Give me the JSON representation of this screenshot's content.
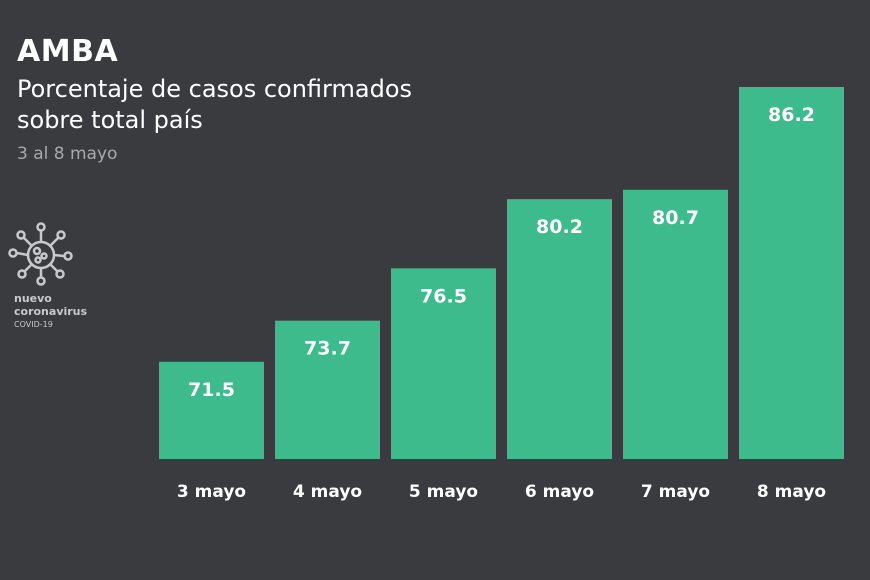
{
  "chart_data": {
    "type": "bar",
    "title": "AMBA",
    "subtitle": "Porcentaje de casos confirmados sobre total país",
    "date_range": "3 al 8 mayo",
    "categories": [
      "3 mayo",
      "4 mayo",
      "5 mayo",
      "6 mayo",
      "7 mayo",
      "8 mayo"
    ],
    "values": [
      71.5,
      73.7,
      76.5,
      80.2,
      80.7,
      86.2
    ],
    "data_labels": [
      "71.5",
      "73.7",
      "76.5",
      "80.2",
      "80.7",
      "86.2"
    ],
    "xlabel": "",
    "ylabel": "",
    "ylim": [
      66.3,
      86.2
    ],
    "grid": false,
    "colors": {
      "background": "#3a3b3e",
      "bar": "#3dbb8c",
      "text": "#ffffff",
      "muted": "#a9a9ab"
    }
  },
  "logo": {
    "line1": "nuevo",
    "line2": "coronavirus",
    "line3": "COVID-19",
    "icon": "virus-icon"
  }
}
